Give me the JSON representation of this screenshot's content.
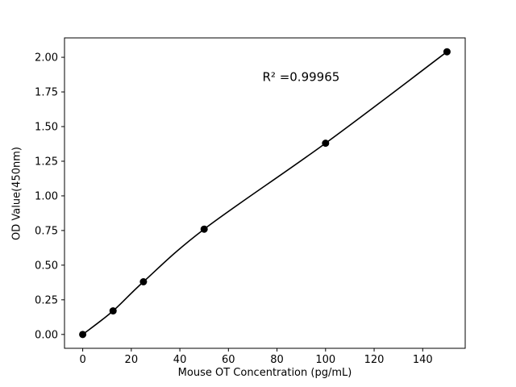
{
  "chart_data": {
    "type": "scatter",
    "title": "",
    "xlabel": "Mouse OT Concentration (pg/mL)",
    "ylabel": "OD Value(450nm)",
    "x": [
      0,
      12.5,
      25,
      50,
      100,
      150
    ],
    "y": [
      0.0,
      0.17,
      0.38,
      0.76,
      1.38,
      2.04
    ],
    "fit_line": "smooth curve through all points",
    "annotation": {
      "text": "R² =0.99965",
      "x": 74,
      "y": 1.83
    },
    "xlim": [
      -7.5,
      157.5
    ],
    "ylim": [
      -0.1,
      2.14
    ],
    "xticks": [
      "0",
      "20",
      "40",
      "60",
      "80",
      "100",
      "120",
      "140"
    ],
    "yticks": [
      "0.00",
      "0.25",
      "0.50",
      "0.75",
      "1.00",
      "1.25",
      "1.50",
      "1.75",
      "2.00"
    ],
    "grid": false,
    "legend": "none",
    "marker_color": "#000000",
    "line_color": "#000000",
    "axis_color": "#000000",
    "background": "#ffffff"
  }
}
